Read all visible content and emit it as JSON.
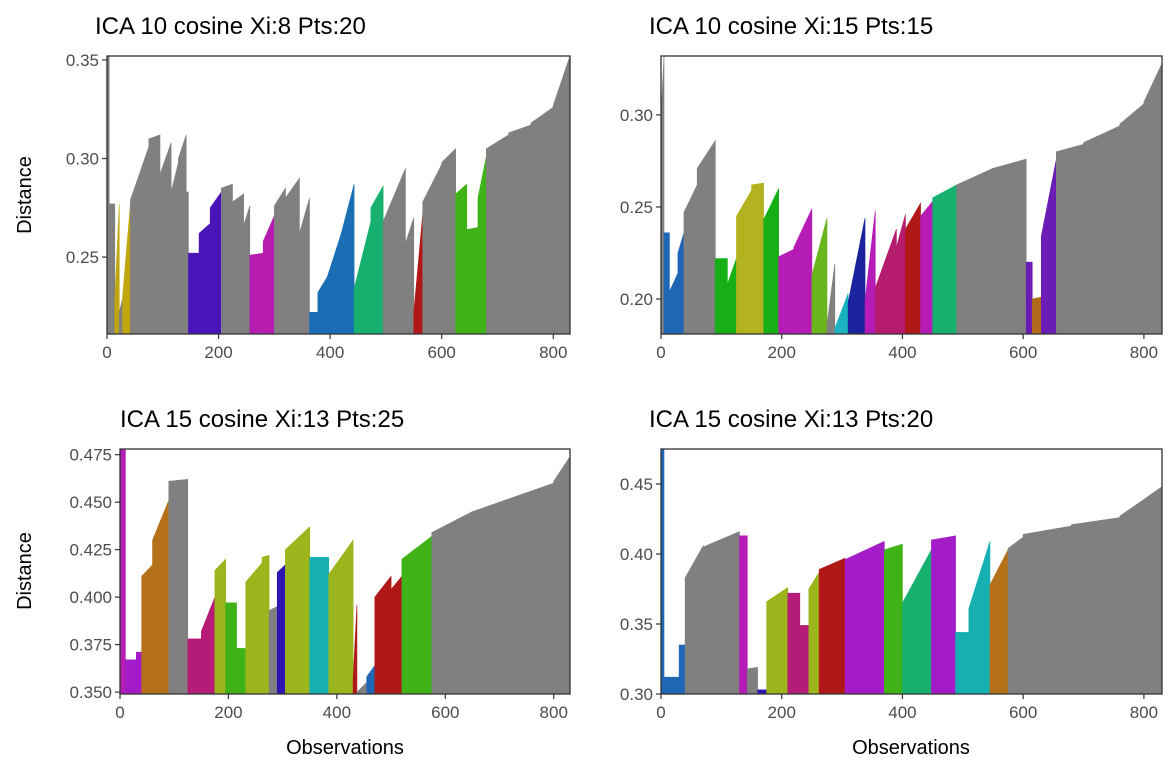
{
  "figure": {
    "ylabel": "Distance",
    "xlabel": "Observations"
  },
  "colors": {
    "noise": "#808080",
    "frame": "#333333"
  },
  "chart_data": [
    {
      "type": "bar",
      "title": "ICA 10 cosine Xi:8 Pts:20",
      "xlabel": "",
      "ylabel": "Distance",
      "xlim": [
        0,
        830
      ],
      "ylim": [
        0.211,
        0.352
      ],
      "xticks": [
        "0",
        "200",
        "400",
        "600",
        "800"
      ],
      "yticks": [
        "0.25",
        "0.30",
        "0.35"
      ],
      "grid": false,
      "n_observations": 830,
      "segments": [
        [
          0,
          4,
          0.352,
          0.352,
          "#808080"
        ],
        [
          4,
          14,
          0.277,
          0.277,
          "#808080"
        ],
        [
          14,
          22,
          0.229,
          0.277,
          "#c0a60f"
        ],
        [
          22,
          28,
          0.222,
          0.229,
          "#808080"
        ],
        [
          28,
          42,
          0.23,
          0.277,
          "#c0a60f"
        ],
        [
          42,
          75,
          0.279,
          0.306,
          "#808080"
        ],
        [
          75,
          95,
          0.31,
          0.312,
          "#808080"
        ],
        [
          95,
          115,
          0.292,
          0.308,
          "#808080"
        ],
        [
          115,
          128,
          0.283,
          0.298,
          "#808080"
        ],
        [
          128,
          142,
          0.3,
          0.312,
          "#808080"
        ],
        [
          142,
          146,
          0.283,
          0.283,
          "#808080"
        ],
        [
          146,
          165,
          0.252,
          0.252,
          "#4a15b8"
        ],
        [
          165,
          185,
          0.262,
          0.267,
          "#4a15b8"
        ],
        [
          185,
          205,
          0.275,
          0.283,
          "#4a15b8"
        ],
        [
          205,
          225,
          0.285,
          0.287,
          "#808080"
        ],
        [
          225,
          245,
          0.278,
          0.282,
          "#808080"
        ],
        [
          245,
          256,
          0.266,
          0.276,
          "#808080"
        ],
        [
          256,
          280,
          0.251,
          0.252,
          "#b51caf"
        ],
        [
          280,
          300,
          0.258,
          0.271,
          "#b51caf"
        ],
        [
          300,
          320,
          0.276,
          0.285,
          "#808080"
        ],
        [
          320,
          345,
          0.28,
          0.29,
          "#808080"
        ],
        [
          345,
          363,
          0.262,
          0.28,
          "#808080"
        ],
        [
          363,
          378,
          0.222,
          0.222,
          "#1a6fb4"
        ],
        [
          378,
          395,
          0.232,
          0.24,
          "#1a6fb4"
        ],
        [
          395,
          420,
          0.24,
          0.262,
          "#1a6fb4"
        ],
        [
          420,
          443,
          0.262,
          0.287,
          "#1a6fb4"
        ],
        [
          443,
          473,
          0.234,
          0.268,
          "#17b06e"
        ],
        [
          473,
          495,
          0.275,
          0.286,
          "#17b06e"
        ],
        [
          495,
          535,
          0.268,
          0.295,
          "#808080"
        ],
        [
          535,
          550,
          0.257,
          0.27,
          "#808080"
        ],
        [
          550,
          566,
          0.222,
          0.272,
          "#b01818"
        ],
        [
          566,
          600,
          0.278,
          0.297,
          "#808080"
        ],
        [
          600,
          625,
          0.298,
          0.305,
          "#808080"
        ],
        [
          625,
          645,
          0.282,
          0.287,
          "#3fb218"
        ],
        [
          645,
          665,
          0.264,
          0.265,
          "#3fb218"
        ],
        [
          665,
          680,
          0.28,
          0.301,
          "#3fb218"
        ],
        [
          680,
          720,
          0.305,
          0.312,
          "#808080"
        ],
        [
          720,
          760,
          0.313,
          0.317,
          "#808080"
        ],
        [
          760,
          800,
          0.318,
          0.326,
          "#808080"
        ],
        [
          800,
          830,
          0.327,
          0.352,
          "#808080"
        ]
      ]
    },
    {
      "type": "bar",
      "title": "ICA 10 cosine Xi:15 Pts:15",
      "xlabel": "",
      "ylabel": "",
      "xlim": [
        0,
        830
      ],
      "ylim": [
        0.181,
        0.332
      ],
      "xticks": [
        "0",
        "200",
        "400",
        "600",
        "800"
      ],
      "yticks": [
        "0.20",
        "0.25",
        "0.30"
      ],
      "grid": false,
      "n_observations": 830,
      "segments": [
        [
          0,
          5,
          0.3,
          0.332,
          "#808080"
        ],
        [
          5,
          14,
          0.236,
          0.236,
          "#1f66b5"
        ],
        [
          14,
          28,
          0.204,
          0.214,
          "#1f66b5"
        ],
        [
          28,
          38,
          0.225,
          0.236,
          "#1f66b5"
        ],
        [
          38,
          60,
          0.247,
          0.262,
          "#808080"
        ],
        [
          60,
          90,
          0.271,
          0.286,
          "#808080"
        ],
        [
          90,
          110,
          0.222,
          0.222,
          "#16b016"
        ],
        [
          110,
          125,
          0.208,
          0.222,
          "#16b016"
        ],
        [
          125,
          150,
          0.245,
          0.259,
          "#b3b320"
        ],
        [
          150,
          170,
          0.262,
          0.263,
          "#b3b320"
        ],
        [
          170,
          195,
          0.243,
          0.26,
          "#16b016"
        ],
        [
          195,
          220,
          0.223,
          0.227,
          "#b51cb5"
        ],
        [
          220,
          250,
          0.228,
          0.249,
          "#b51cb5"
        ],
        [
          250,
          275,
          0.213,
          0.244,
          "#6ab51c"
        ],
        [
          275,
          288,
          0.186,
          0.219,
          "#808080"
        ],
        [
          288,
          310,
          0.184,
          0.203,
          "#1bb3c0"
        ],
        [
          310,
          338,
          0.198,
          0.244,
          "#1a239c"
        ],
        [
          338,
          355,
          0.199,
          0.248,
          "#b51cb5"
        ],
        [
          355,
          390,
          0.206,
          0.238,
          "#b51c6e"
        ],
        [
          390,
          405,
          0.228,
          0.246,
          "#b51c6e"
        ],
        [
          405,
          430,
          0.238,
          0.252,
          "#b01818"
        ],
        [
          430,
          450,
          0.245,
          0.253,
          "#b51cb5"
        ],
        [
          450,
          490,
          0.255,
          0.262,
          "#17b06e"
        ],
        [
          490,
          550,
          0.262,
          0.271,
          "#808080"
        ],
        [
          550,
          605,
          0.271,
          0.276,
          "#808080"
        ],
        [
          605,
          615,
          0.22,
          0.22,
          "#6a1cb5"
        ],
        [
          615,
          630,
          0.2,
          0.201,
          "#b36a1c"
        ],
        [
          630,
          655,
          0.234,
          0.276,
          "#6a1cb5"
        ],
        [
          655,
          700,
          0.28,
          0.284,
          "#808080"
        ],
        [
          700,
          760,
          0.285,
          0.294,
          "#808080"
        ],
        [
          760,
          800,
          0.295,
          0.306,
          "#808080"
        ],
        [
          800,
          830,
          0.307,
          0.328,
          "#808080"
        ]
      ]
    },
    {
      "type": "bar",
      "title": "ICA 15 cosine Xi:13 Pts:25",
      "xlabel": "",
      "ylabel": "Distance",
      "xlim": [
        0,
        830
      ],
      "ylim": [
        0.349,
        0.478
      ],
      "xticks": [
        "0",
        "200",
        "400",
        "600",
        "800"
      ],
      "yticks": [
        "0.350",
        "0.375",
        "0.400",
        "0.425",
        "0.450",
        "0.475"
      ],
      "grid": false,
      "n_observations": 830,
      "segments": [
        [
          0,
          10,
          0.478,
          0.478,
          "#b51cb5"
        ],
        [
          10,
          30,
          0.367,
          0.367,
          "#a31cc8"
        ],
        [
          30,
          40,
          0.371,
          0.371,
          "#a31cc8"
        ],
        [
          40,
          60,
          0.411,
          0.417,
          "#b5701a"
        ],
        [
          60,
          90,
          0.43,
          0.451,
          "#b5701a"
        ],
        [
          90,
          125,
          0.461,
          0.462,
          "#808080"
        ],
        [
          125,
          150,
          0.378,
          0.378,
          "#b51c78"
        ],
        [
          150,
          175,
          0.382,
          0.4,
          "#b51c78"
        ],
        [
          175,
          195,
          0.414,
          0.42,
          "#9cb51c"
        ],
        [
          195,
          215,
          0.397,
          0.397,
          "#3fb218"
        ],
        [
          215,
          232,
          0.373,
          0.373,
          "#3fb218"
        ],
        [
          232,
          262,
          0.408,
          0.418,
          "#9cb51c"
        ],
        [
          262,
          275,
          0.421,
          0.422,
          "#9cb51c"
        ],
        [
          275,
          290,
          0.393,
          0.395,
          "#808080"
        ],
        [
          290,
          305,
          0.413,
          0.417,
          "#3016b0"
        ],
        [
          305,
          350,
          0.425,
          0.437,
          "#9cb51c"
        ],
        [
          350,
          385,
          0.421,
          0.421,
          "#16b0b3"
        ],
        [
          385,
          430,
          0.412,
          0.43,
          "#9cb51c"
        ],
        [
          430,
          437,
          0.357,
          0.396,
          "#b01818"
        ],
        [
          437,
          455,
          0.35,
          0.355,
          "#808080"
        ],
        [
          455,
          470,
          0.358,
          0.364,
          "#1f66b5"
        ],
        [
          470,
          500,
          0.4,
          0.411,
          "#b01818"
        ],
        [
          500,
          520,
          0.404,
          0.411,
          "#b01818"
        ],
        [
          520,
          575,
          0.42,
          0.432,
          "#3fb218"
        ],
        [
          575,
          650,
          0.434,
          0.445,
          "#808080"
        ],
        [
          650,
          720,
          0.445,
          0.452,
          "#808080"
        ],
        [
          720,
          800,
          0.452,
          0.46,
          "#808080"
        ],
        [
          800,
          830,
          0.461,
          0.474,
          "#808080"
        ]
      ]
    },
    {
      "type": "bar",
      "title": "ICA 15 cosine Xi:13 Pts:20",
      "xlabel": "",
      "ylabel": "",
      "xlim": [
        0,
        830
      ],
      "ylim": [
        0.3,
        0.475
      ],
      "xticks": [
        "0",
        "200",
        "400",
        "600",
        "800"
      ],
      "yticks": [
        "0.30",
        "0.35",
        "0.40",
        "0.45"
      ],
      "grid": false,
      "n_observations": 830,
      "segments": [
        [
          0,
          5,
          0.475,
          0.475,
          "#1f66b5"
        ],
        [
          5,
          30,
          0.312,
          0.312,
          "#1f66b5"
        ],
        [
          30,
          40,
          0.335,
          0.335,
          "#1f66b5"
        ],
        [
          40,
          70,
          0.383,
          0.406,
          "#808080"
        ],
        [
          70,
          130,
          0.405,
          0.416,
          "#808080"
        ],
        [
          130,
          143,
          0.413,
          0.413,
          "#b51cb5"
        ],
        [
          143,
          160,
          0.318,
          0.319,
          "#808080"
        ],
        [
          160,
          175,
          0.303,
          0.303,
          "#3016b0"
        ],
        [
          175,
          210,
          0.366,
          0.376,
          "#9cb51c"
        ],
        [
          210,
          230,
          0.372,
          0.372,
          "#b51c78"
        ],
        [
          230,
          245,
          0.349,
          0.349,
          "#b51c78"
        ],
        [
          245,
          262,
          0.375,
          0.387,
          "#9cb51c"
        ],
        [
          262,
          305,
          0.389,
          0.397,
          "#b01818"
        ],
        [
          305,
          370,
          0.396,
          0.409,
          "#a31cc8"
        ],
        [
          370,
          400,
          0.403,
          0.407,
          "#3fb218"
        ],
        [
          400,
          448,
          0.365,
          0.403,
          "#17b06e"
        ],
        [
          448,
          488,
          0.41,
          0.413,
          "#a31cc8"
        ],
        [
          488,
          510,
          0.344,
          0.344,
          "#16b0b3"
        ],
        [
          510,
          545,
          0.361,
          0.409,
          "#16b0b3"
        ],
        [
          545,
          575,
          0.378,
          0.403,
          "#b5701a"
        ],
        [
          575,
          600,
          0.404,
          0.412,
          "#808080"
        ],
        [
          600,
          680,
          0.414,
          0.42,
          "#808080"
        ],
        [
          680,
          760,
          0.421,
          0.426,
          "#808080"
        ],
        [
          760,
          830,
          0.427,
          0.448,
          "#808080"
        ]
      ]
    }
  ]
}
